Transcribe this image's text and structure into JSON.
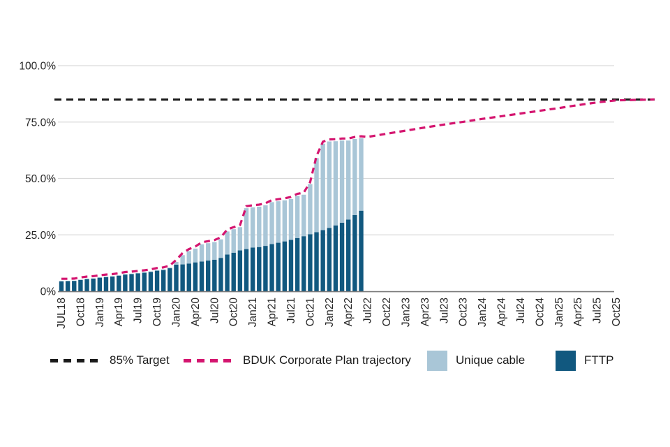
{
  "chart_data": {
    "type": "bar",
    "stacked": true,
    "title": "",
    "ylabel": "",
    "xlabel": "",
    "unit": "%",
    "ylim": [
      0,
      100
    ],
    "grid": "horizontal",
    "y_ticks": [
      {
        "label": "100.0%",
        "value": 100
      },
      {
        "label": "75.0%",
        "value": 75
      },
      {
        "label": "50.0%",
        "value": 50
      },
      {
        "label": "25.0%",
        "value": 25
      },
      {
        "label": "0%",
        "value": 0
      }
    ],
    "x_tick_labels": [
      "JUL18",
      "Oct18",
      "Jan19",
      "Apr19",
      "Jul19",
      "Oct19",
      "Jan20",
      "Apr20",
      "Jul20",
      "Oct20",
      "Jan21",
      "Apr21",
      "Jul21",
      "Oct21",
      "Jan22",
      "Apr22",
      "Jul22",
      "Oct22",
      "Jan23",
      "Apr23",
      "Jul23",
      "Oct23",
      "Jan24",
      "Apr24",
      "Jul24",
      "Oct24",
      "Jan25",
      "Apr25",
      "Jul25",
      "Oct25"
    ],
    "categories": [
      "Jul18",
      "Aug18",
      "Sep18",
      "Oct18",
      "Nov18",
      "Dec18",
      "Jan19",
      "Feb19",
      "Mar19",
      "Apr19",
      "May19",
      "Jun19",
      "Jul19",
      "Aug19",
      "Sep19",
      "Oct19",
      "Nov19",
      "Dec19",
      "Jan20",
      "Feb20",
      "Mar20",
      "Apr20",
      "May20",
      "Jun20",
      "Jul20",
      "Aug20",
      "Sep20",
      "Oct20",
      "Nov20",
      "Dec20",
      "Jan21",
      "Feb21",
      "Mar21",
      "Apr21",
      "May21",
      "Jun21",
      "Jul21",
      "Aug21",
      "Sep21",
      "Oct21",
      "Nov21",
      "Dec21",
      "Jan22",
      "Feb22",
      "Mar22",
      "Apr22",
      "May22",
      "Jun22"
    ],
    "series": [
      {
        "name": "FTTP",
        "color": "#11587f",
        "values": [
          4.4,
          4.5,
          4.6,
          5.0,
          5.4,
          5.6,
          6.0,
          6.3,
          6.5,
          6.9,
          7.4,
          7.6,
          7.9,
          8.2,
          8.6,
          9.1,
          9.4,
          10.2,
          11.8,
          11.9,
          12.3,
          12.8,
          13.2,
          13.6,
          14.0,
          14.8,
          16.3,
          17.1,
          18.1,
          18.7,
          19.4,
          19.6,
          20.1,
          20.9,
          21.5,
          22.1,
          22.8,
          23.6,
          24.4,
          25.3,
          26.2,
          27.1,
          28.1,
          29.2,
          30.4,
          31.8,
          33.8,
          35.7
        ]
      },
      {
        "name": "Unique cable",
        "color": "#a9c6d7",
        "values": [
          0.2,
          0.1,
          0.1,
          0.2,
          0.2,
          0.2,
          0.2,
          0.2,
          0.2,
          0.2,
          0.2,
          0.2,
          0.2,
          0.2,
          0.2,
          0.3,
          0.3,
          0.3,
          1.2,
          4.1,
          5.5,
          6.1,
          7.6,
          7.7,
          7.8,
          8.2,
          10.2,
          10.4,
          10.3,
          18.1,
          17.8,
          17.9,
          18.0,
          18.6,
          18.4,
          18.2,
          18.1,
          18.7,
          18.4,
          22.2,
          32.8,
          38.3,
          38.3,
          37.3,
          36.4,
          35.0,
          33.7,
          32.1
        ]
      }
    ],
    "target_line": {
      "label": "85% Target",
      "value": 85,
      "color": "#1a1a1a",
      "style": "dashed"
    },
    "trajectory": {
      "name": "BDUK Corporate Plan trajectory",
      "color": "#d4156f",
      "style": "dashed",
      "note": "follows top of stacked bars Jul18-Jun22, then rises to 85% by Oct25",
      "future_points": [
        {
          "month": "Jul22",
          "month_index": 48,
          "value": 68.4
        },
        {
          "month": "Oct22",
          "month_index": 51,
          "value": 69.8
        },
        {
          "month": "Jan23",
          "month_index": 54,
          "value": 71.2
        },
        {
          "month": "Apr23",
          "month_index": 57,
          "value": 72.6
        },
        {
          "month": "Jul23",
          "month_index": 60,
          "value": 73.9
        },
        {
          "month": "Oct23",
          "month_index": 63,
          "value": 75.1
        },
        {
          "month": "Jan24",
          "month_index": 66,
          "value": 76.4
        },
        {
          "month": "Apr24",
          "month_index": 69,
          "value": 77.6
        },
        {
          "month": "Jul24",
          "month_index": 72,
          "value": 78.8
        },
        {
          "month": "Oct24",
          "month_index": 75,
          "value": 80.0
        },
        {
          "month": "Jan25",
          "month_index": 78,
          "value": 81.2
        },
        {
          "month": "Apr25",
          "month_index": 81,
          "value": 82.5
        },
        {
          "month": "Jul25",
          "month_index": 84,
          "value": 83.7
        },
        {
          "month": "Oct25",
          "month_index": 87,
          "value": 84.6
        },
        {
          "month": "",
          "month_index": 93,
          "value": 85.0
        }
      ]
    },
    "legend_position": "bottom"
  },
  "legend": {
    "items": [
      {
        "label": "85% Target"
      },
      {
        "label": "BDUK Corporate Plan trajectory"
      },
      {
        "label": "Unique cable"
      },
      {
        "label": "FTTP"
      }
    ]
  },
  "colors": {
    "grid": "#d9d9d9",
    "axis": "#7a7a7a",
    "tick_text": "#262626"
  }
}
